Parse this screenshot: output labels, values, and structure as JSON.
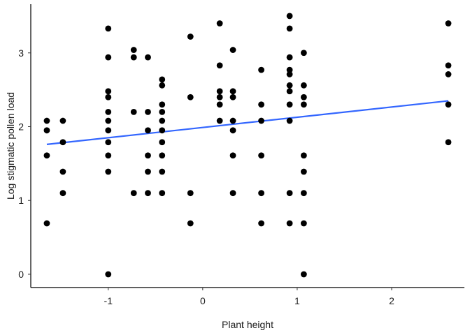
{
  "chart_data": {
    "type": "scatter",
    "xlabel": "Plant height",
    "ylabel": "Log stigmatic pollen load",
    "xlim": [
      -1.82,
      2.77
    ],
    "ylim": [
      -0.18,
      3.66
    ],
    "x_ticks": [
      -1,
      0,
      1,
      2
    ],
    "x_tick_labels": [
      "-1",
      "0",
      "1",
      "2"
    ],
    "y_ticks": [
      0,
      1,
      2,
      3
    ],
    "y_tick_labels": [
      "0",
      "1",
      "2",
      "3"
    ],
    "grid": false,
    "point_color": "#000000",
    "line_color": "#3366FF",
    "points": [
      {
        "x": -1.65,
        "y": 2.08
      },
      {
        "x": -1.65,
        "y": 1.95
      },
      {
        "x": -1.65,
        "y": 1.61
      },
      {
        "x": -1.65,
        "y": 0.69
      },
      {
        "x": -1.48,
        "y": 2.08
      },
      {
        "x": -1.48,
        "y": 1.79
      },
      {
        "x": -1.48,
        "y": 1.39
      },
      {
        "x": -1.48,
        "y": 1.1
      },
      {
        "x": -1.0,
        "y": 3.33
      },
      {
        "x": -1.0,
        "y": 2.94
      },
      {
        "x": -1.0,
        "y": 2.48
      },
      {
        "x": -1.0,
        "y": 2.4
      },
      {
        "x": -1.0,
        "y": 2.2
      },
      {
        "x": -1.0,
        "y": 2.08
      },
      {
        "x": -1.0,
        "y": 1.95
      },
      {
        "x": -1.0,
        "y": 1.79
      },
      {
        "x": -1.0,
        "y": 1.61
      },
      {
        "x": -1.0,
        "y": 1.39
      },
      {
        "x": -1.0,
        "y": 0.0
      },
      {
        "x": -0.73,
        "y": 3.04
      },
      {
        "x": -0.73,
        "y": 2.94
      },
      {
        "x": -0.73,
        "y": 2.2
      },
      {
        "x": -0.73,
        "y": 1.1
      },
      {
        "x": -0.58,
        "y": 2.94
      },
      {
        "x": -0.58,
        "y": 2.2
      },
      {
        "x": -0.58,
        "y": 1.95
      },
      {
        "x": -0.58,
        "y": 1.61
      },
      {
        "x": -0.58,
        "y": 1.39
      },
      {
        "x": -0.58,
        "y": 1.1
      },
      {
        "x": -0.43,
        "y": 2.64
      },
      {
        "x": -0.43,
        "y": 2.56
      },
      {
        "x": -0.43,
        "y": 2.3
      },
      {
        "x": -0.43,
        "y": 2.2
      },
      {
        "x": -0.43,
        "y": 2.08
      },
      {
        "x": -0.43,
        "y": 1.95
      },
      {
        "x": -0.43,
        "y": 1.79
      },
      {
        "x": -0.43,
        "y": 1.61
      },
      {
        "x": -0.43,
        "y": 1.39
      },
      {
        "x": -0.43,
        "y": 1.1
      },
      {
        "x": -0.13,
        "y": 3.22
      },
      {
        "x": -0.13,
        "y": 2.4
      },
      {
        "x": -0.13,
        "y": 1.1
      },
      {
        "x": -0.13,
        "y": 0.69
      },
      {
        "x": 0.18,
        "y": 3.4
      },
      {
        "x": 0.18,
        "y": 2.83
      },
      {
        "x": 0.18,
        "y": 2.48
      },
      {
        "x": 0.18,
        "y": 2.4
      },
      {
        "x": 0.18,
        "y": 2.3
      },
      {
        "x": 0.18,
        "y": 2.08
      },
      {
        "x": 0.32,
        "y": 3.04
      },
      {
        "x": 0.32,
        "y": 2.48
      },
      {
        "x": 0.32,
        "y": 2.4
      },
      {
        "x": 0.32,
        "y": 2.08
      },
      {
        "x": 0.32,
        "y": 1.95
      },
      {
        "x": 0.32,
        "y": 1.61
      },
      {
        "x": 0.32,
        "y": 1.1
      },
      {
        "x": 0.62,
        "y": 2.77
      },
      {
        "x": 0.62,
        "y": 2.3
      },
      {
        "x": 0.62,
        "y": 2.08
      },
      {
        "x": 0.62,
        "y": 1.61
      },
      {
        "x": 0.62,
        "y": 1.1
      },
      {
        "x": 0.62,
        "y": 0.69
      },
      {
        "x": 0.92,
        "y": 3.5
      },
      {
        "x": 0.92,
        "y": 3.33
      },
      {
        "x": 0.92,
        "y": 2.94
      },
      {
        "x": 0.92,
        "y": 2.77
      },
      {
        "x": 0.92,
        "y": 2.71
      },
      {
        "x": 0.92,
        "y": 2.56
      },
      {
        "x": 0.92,
        "y": 2.48
      },
      {
        "x": 0.92,
        "y": 2.3
      },
      {
        "x": 0.92,
        "y": 2.08
      },
      {
        "x": 0.92,
        "y": 1.1
      },
      {
        "x": 0.92,
        "y": 0.69
      },
      {
        "x": 1.07,
        "y": 3.0
      },
      {
        "x": 1.07,
        "y": 2.56
      },
      {
        "x": 1.07,
        "y": 2.4
      },
      {
        "x": 1.07,
        "y": 2.3
      },
      {
        "x": 1.07,
        "y": 1.61
      },
      {
        "x": 1.07,
        "y": 1.39
      },
      {
        "x": 1.07,
        "y": 1.1
      },
      {
        "x": 1.07,
        "y": 0.69
      },
      {
        "x": 1.07,
        "y": 0.0
      },
      {
        "x": 2.6,
        "y": 3.4
      },
      {
        "x": 2.6,
        "y": 2.83
      },
      {
        "x": 2.6,
        "y": 2.71
      },
      {
        "x": 2.6,
        "y": 2.3
      },
      {
        "x": 2.6,
        "y": 1.79
      }
    ],
    "trend_line": {
      "x": [
        -1.65,
        2.6
      ],
      "y": [
        1.76,
        2.35
      ]
    }
  }
}
